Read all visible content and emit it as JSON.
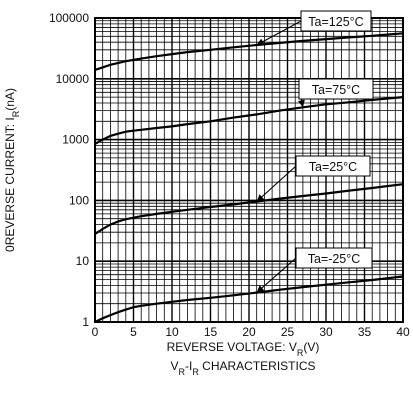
{
  "chart_data": {
    "type": "line",
    "title": "",
    "caption": {
      "base_a": "V",
      "sub_a": "R",
      "mid": "-I",
      "sub_b": "R",
      "rest": " CHARACTERISTICS"
    },
    "xlabel": {
      "text": "REVERSE VOLTAGE: V",
      "sub": "R",
      "unit": "(V)"
    },
    "ylabel": {
      "text": "0REVERSE CURRENT: I",
      "sub": "R",
      "unit": "(nA)"
    },
    "x_scale": "linear",
    "y_scale": "log",
    "xlim": [
      0,
      40
    ],
    "ylim": [
      1,
      100000
    ],
    "x_ticks": [
      "0",
      "5",
      "10",
      "15",
      "20",
      "25",
      "30",
      "35",
      "40"
    ],
    "y_ticks": [
      "1",
      "10",
      "100",
      "1000",
      "10000",
      "100000"
    ],
    "grid": true,
    "series": [
      {
        "name": "Ta=125°C",
        "x": [
          0,
          2,
          4,
          6,
          8,
          10,
          12,
          15,
          18,
          21,
          24,
          27,
          30,
          33,
          36,
          40
        ],
        "y": [
          14000,
          17000,
          19500,
          21500,
          23500,
          25500,
          27500,
          30000,
          33000,
          36000,
          39000,
          42000,
          45000,
          48000,
          51000,
          56000
        ]
      },
      {
        "name": "Ta=75°C",
        "x": [
          0,
          1,
          2,
          3,
          4,
          5,
          6,
          8,
          10,
          12,
          15,
          18,
          21,
          24,
          27,
          30,
          33,
          36,
          40
        ],
        "y": [
          850,
          1000,
          1150,
          1250,
          1350,
          1400,
          1450,
          1550,
          1650,
          1800,
          2000,
          2300,
          2600,
          3000,
          3400,
          3800,
          4100,
          4500,
          5000
        ]
      },
      {
        "name": "Ta=25°C",
        "x": [
          0,
          1,
          2,
          3,
          4,
          5,
          6,
          8,
          10,
          12,
          15,
          18,
          21,
          24,
          27,
          30,
          33,
          36,
          40
        ],
        "y": [
          28,
          34,
          40,
          45,
          49,
          52,
          55,
          60,
          65,
          70,
          78,
          86,
          96,
          107,
          118,
          130,
          145,
          160,
          185
        ]
      },
      {
        "name": "Ta=-25°C",
        "x": [
          0,
          1,
          2,
          3,
          4,
          5,
          6,
          8,
          10,
          12,
          15,
          18,
          21,
          24,
          27,
          30,
          33,
          36,
          40
        ],
        "y": [
          1.0,
          1.15,
          1.3,
          1.45,
          1.6,
          1.75,
          1.85,
          2.0,
          2.15,
          2.3,
          2.5,
          2.75,
          3.05,
          3.4,
          3.75,
          4.1,
          4.5,
          4.9,
          5.6
        ]
      }
    ],
    "annotations": [
      {
        "text": "Ta=125°C",
        "series": 0,
        "at_x": 21
      },
      {
        "text": "Ta=75°C",
        "series": 1,
        "at_x": 27
      },
      {
        "text": "Ta=25°C",
        "series": 2,
        "at_x": 21
      },
      {
        "text": "Ta=-25°C",
        "series": 3,
        "at_x": 21
      }
    ]
  }
}
